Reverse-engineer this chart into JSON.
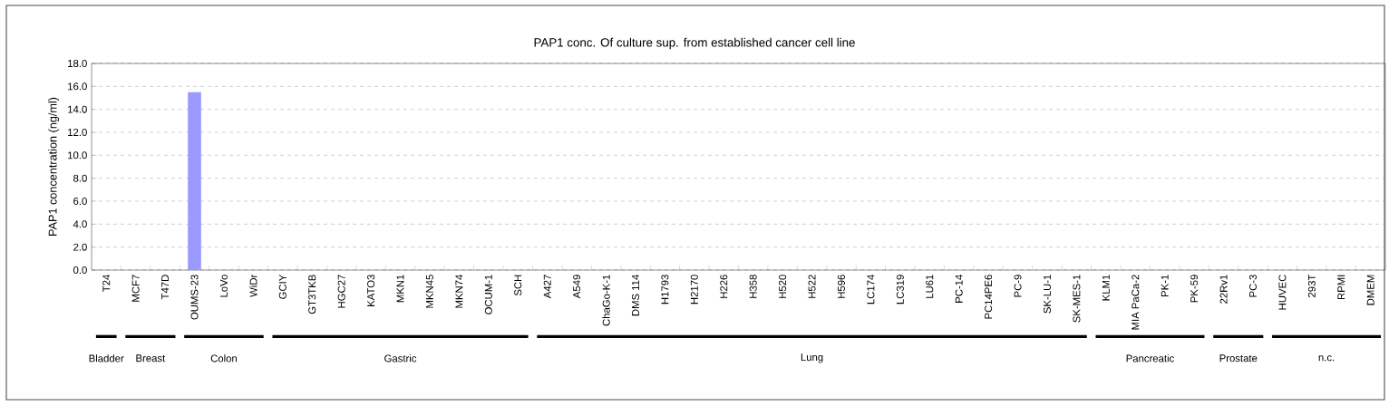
{
  "chart_data": {
    "type": "bar",
    "title": "PAP1 conc. Of culture sup. from established cancer cell line",
    "ylabel": "PAP1 concentration (ng/ml)",
    "categories": [
      "T24",
      "MCF7",
      "T47D",
      "OUMS-23",
      "LoVo",
      "WiDr",
      "GCIY",
      "GT3TKB",
      "HGC27",
      "KATO3",
      "MKN1",
      "MKN45",
      "MKN74",
      "OCUM-1",
      "SCH",
      "A427",
      "A549",
      "ChaGo-K-1",
      "DMS 114",
      "H1793",
      "H2170",
      "H226",
      "H358",
      "H520",
      "H522",
      "H596",
      "LC174",
      "LC319",
      "LU61",
      "PC-14",
      "PC14PE6",
      "PC-9",
      "SK-LU-1",
      "SK-MES-1",
      "KLM1",
      "MIA PaCa-2",
      "PK-1",
      "PK-59",
      "22Rv1",
      "PC-3",
      "HUVEC",
      "293T",
      "RPMI",
      "DMEM"
    ],
    "values": [
      0,
      0,
      0,
      15.5,
      0,
      0,
      0,
      0,
      0,
      0,
      0,
      0,
      0,
      0,
      0,
      0,
      0,
      0,
      0,
      0,
      0,
      0,
      0,
      0,
      0,
      0,
      0,
      0,
      0,
      0,
      0,
      0,
      0,
      0,
      0,
      0,
      0,
      0,
      0,
      0,
      0,
      0,
      0,
      0
    ],
    "color": "#9999ff",
    "ylim": [
      0,
      18
    ],
    "yticks": [
      {
        "value": 0,
        "label": "0.0"
      },
      {
        "value": 2,
        "label": "2.0"
      },
      {
        "value": 4,
        "label": "4.0"
      },
      {
        "value": 6,
        "label": "6.0"
      },
      {
        "value": 8,
        "label": "8.0"
      },
      {
        "value": 10,
        "label": "10.0"
      },
      {
        "value": 12,
        "label": "12.0"
      },
      {
        "value": 14,
        "label": "14.0"
      },
      {
        "value": 16,
        "label": "16.0"
      },
      {
        "value": 18,
        "label": "18.0"
      }
    ],
    "grid": "y",
    "annotations": [
      "Bladder",
      "Breast",
      "Colon",
      "Gastric",
      "Lung",
      "Pancreatic",
      "Prostate",
      "n.c."
    ]
  }
}
